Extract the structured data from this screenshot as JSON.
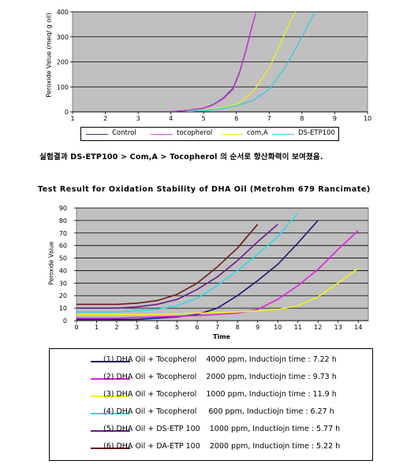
{
  "caption": "실험결과 DS-ETP100 > Com,A > Tocopherol 의 순서로 항산화력이 보여졌음.",
  "chart_data": [
    {
      "type": "line",
      "title": "",
      "xlabel": "",
      "ylabel": "Peroxide Value (meq/ g oil)",
      "xlim": [
        1,
        10
      ],
      "ylim": [
        0,
        400
      ],
      "xticks": [
        1,
        2,
        3,
        4,
        5,
        6,
        7,
        8,
        9,
        10
      ],
      "yticks": [
        0,
        100,
        200,
        300,
        400
      ],
      "grid": true,
      "legend_position": "bottom",
      "series": [
        {
          "name": "Control",
          "color": "#3a2f7a",
          "x": [
            4.0,
            4.5,
            5.0,
            5.3,
            5.6,
            5.9,
            6.1,
            6.3,
            6.45,
            6.6
          ],
          "y": [
            2,
            6,
            15,
            30,
            55,
            95,
            160,
            250,
            330,
            400
          ]
        },
        {
          "name": "tocopherol",
          "color": "#e040e0",
          "x": [
            4.0,
            4.5,
            5.0,
            5.3,
            5.6,
            5.9,
            6.1,
            6.3,
            6.45,
            6.6
          ],
          "y": [
            2,
            5,
            14,
            28,
            52,
            90,
            155,
            245,
            325,
            400
          ]
        },
        {
          "name": "com,A",
          "color": "#f0f020",
          "x": [
            4.5,
            5.0,
            5.5,
            6.0,
            6.5,
            7.0,
            7.3,
            7.6,
            7.8
          ],
          "y": [
            2,
            6,
            15,
            30,
            80,
            175,
            260,
            350,
            400
          ]
        },
        {
          "name": "DS-ETP100",
          "color": "#30c8e8",
          "x": [
            4.5,
            5.0,
            5.5,
            6.0,
            6.5,
            7.0,
            7.5,
            8.0,
            8.4
          ],
          "y": [
            2,
            5,
            12,
            25,
            45,
            90,
            180,
            300,
            400
          ]
        }
      ]
    },
    {
      "type": "line",
      "title": "Test Result for Oxidation Stability of DHA Oil (Metrohm 679 Rancimate)",
      "xlabel": "Time",
      "ylabel": "Peroxide Value",
      "xlim": [
        0,
        14.5
      ],
      "ylim": [
        0,
        90
      ],
      "xticks": [
        0,
        1,
        2,
        3,
        4,
        5,
        6,
        7,
        8,
        9,
        10,
        11,
        12,
        13,
        14
      ],
      "yticks": [
        0,
        10,
        20,
        30,
        40,
        50,
        60,
        70,
        80,
        90
      ],
      "grid": true,
      "legend_position": "bottom",
      "series": [
        {
          "name": "(1) DHA Oil + Tocopherol    4000 ppm, Inductiojn time : 7.22 h",
          "color": "#191970",
          "x": [
            0,
            1,
            2,
            3,
            4,
            5,
            6,
            7,
            8,
            9,
            10,
            11,
            12
          ],
          "y": [
            1,
            1,
            1,
            1,
            2,
            3,
            5,
            10,
            20,
            32,
            45,
            62,
            80
          ]
        },
        {
          "name": "(2) DHA Oil + Tocopherol    2000 ppm, Inductiojn time : 9.73 h",
          "color": "#e020e0",
          "x": [
            0,
            2,
            4,
            6,
            8,
            9,
            10,
            11,
            12,
            13,
            14
          ],
          "y": [
            2,
            2,
            3,
            4,
            6,
            9,
            17,
            28,
            41,
            57,
            72
          ]
        },
        {
          "name": "(3) DHA Oil + Tocopherol    1000 ppm, Inductiojn time : 11.9 h",
          "color": "#f0f020",
          "x": [
            0,
            2,
            4,
            6,
            8,
            10,
            11,
            12,
            13,
            14
          ],
          "y": [
            5,
            5,
            5,
            6,
            7,
            9,
            12,
            19,
            30,
            42
          ]
        },
        {
          "name": "(4) DHA Oil + Tocopherol     600 ppm, Inductiojn time : 6.27 h",
          "color": "#30d8e8",
          "x": [
            0,
            1,
            2,
            3,
            4,
            5,
            6,
            7,
            8,
            9,
            10,
            11
          ],
          "y": [
            7,
            7,
            7,
            8,
            9,
            12,
            18,
            28,
            40,
            53,
            67,
            86
          ]
        },
        {
          "name": "(5) DHA Oil + DS-ETP 100    1000 ppm, Inductiojn time : 5.77 h",
          "color": "#6a1a8a",
          "x": [
            0,
            1,
            2,
            3,
            4,
            5,
            6,
            7,
            8,
            9,
            10
          ],
          "y": [
            10,
            10,
            10,
            11,
            13,
            17,
            25,
            35,
            48,
            63,
            77
          ]
        },
        {
          "name": "(6) DHA Oil + DA-ETP 100    2000 ppm, Inductiojn time : 5.22 h",
          "color": "#6b1a1a",
          "x": [
            0,
            1,
            2,
            3,
            4,
            5,
            6,
            7,
            8,
            9
          ],
          "y": [
            13,
            13,
            13,
            14,
            16,
            21,
            30,
            43,
            58,
            77
          ]
        }
      ]
    }
  ]
}
